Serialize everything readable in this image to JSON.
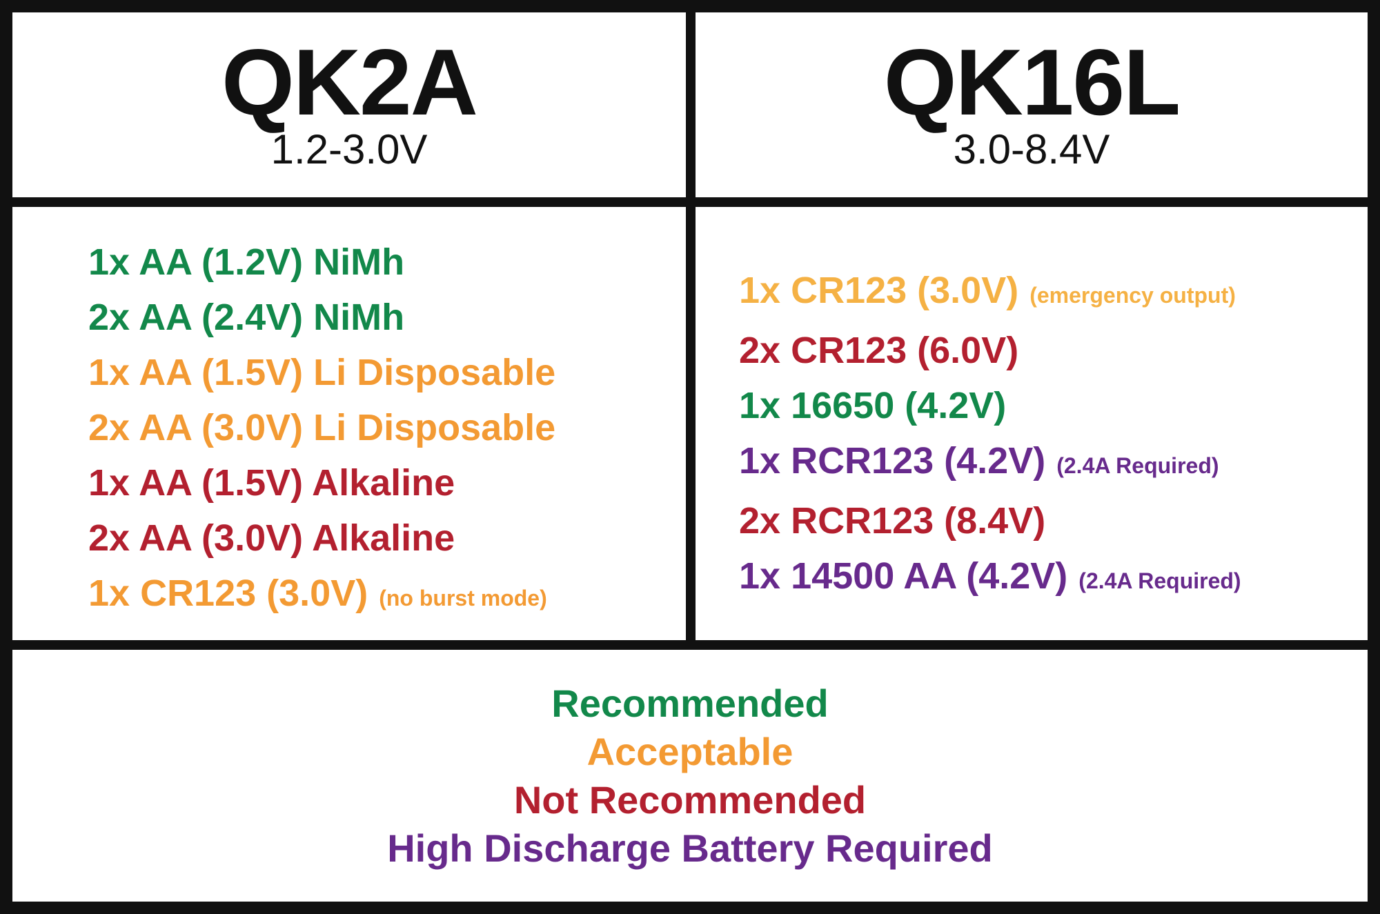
{
  "columns": [
    {
      "title": "QK2A",
      "voltage": "1.2-3.0V",
      "items": [
        {
          "text": "1x AA (1.2V) NiMh",
          "color": "#12884a"
        },
        {
          "text": "2x AA (2.4V) NiMh",
          "color": "#12884a"
        },
        {
          "text": "1x AA (1.5V) Li Disposable",
          "color": "#f39a33"
        },
        {
          "text": "2x AA (3.0V) Li Disposable",
          "color": "#f39a33"
        },
        {
          "text": "1x AA (1.5V) Alkaline",
          "color": "#b3202f"
        },
        {
          "text": "2x AA (3.0V) Alkaline",
          "color": "#b3202f"
        },
        {
          "text": "1x CR123 (3.0V)",
          "note": "(no burst mode)",
          "color": "#f39a33"
        }
      ]
    },
    {
      "title": "QK16L",
      "voltage": "3.0-8.4V",
      "items": [
        {
          "text": "1x CR123 (3.0V)",
          "note": "(emergency output)",
          "color": "#f5b144"
        },
        {
          "text": "2x CR123 (6.0V)",
          "color": "#b3202f"
        },
        {
          "text": "1x 16650 (4.2V)",
          "color": "#12884a"
        },
        {
          "text": "1x RCR123 (4.2V)",
          "note": "(2.4A Required)",
          "color": "#672a8c"
        },
        {
          "text": "2x RCR123 (8.4V)",
          "color": "#b3202f"
        },
        {
          "text": "1x 14500 AA (4.2V)",
          "note": "(2.4A Required)",
          "color": "#672a8c"
        }
      ]
    }
  ],
  "legend": [
    {
      "label": "Recommended",
      "color": "#12884a"
    },
    {
      "label": "Acceptable",
      "color": "#f39a33"
    },
    {
      "label": "Not Recommended",
      "color": "#b3202f"
    },
    {
      "label": "High Discharge Battery Required",
      "color": "#672a8c"
    }
  ]
}
